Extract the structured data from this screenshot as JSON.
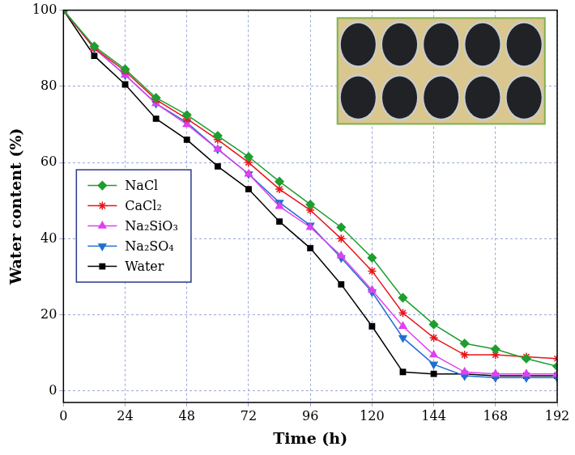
{
  "chart_data": {
    "type": "line",
    "x_label": "Time (h)",
    "y_label": "Water content (%)",
    "x": [
      0,
      12,
      24,
      36,
      48,
      60,
      72,
      84,
      96,
      108,
      120,
      132,
      144,
      156,
      168,
      180,
      192
    ],
    "series": [
      {
        "name": "NaCl",
        "color": "#1e9e2e",
        "marker": "diamond",
        "values": [
          100,
          90.5,
          84.5,
          77,
          72.5,
          67,
          61.5,
          55,
          49,
          43,
          35,
          24.5,
          17.5,
          12.5,
          11,
          8.5,
          6.5
        ]
      },
      {
        "name": "CaCl₂",
        "color": "#e8141b",
        "marker": "star",
        "values": [
          100,
          90,
          84,
          76.5,
          71.5,
          66,
          60,
          53,
          47.5,
          40,
          31.5,
          20.5,
          14,
          9.5,
          9.5,
          9,
          8.5
        ]
      },
      {
        "name": "Na₂SiO₃",
        "color": "#e040f0",
        "marker": "triangle",
        "values": [
          100,
          90,
          83,
          75.5,
          70,
          63.5,
          57,
          48.5,
          43,
          35.5,
          26.5,
          17,
          9.5,
          5,
          4.5,
          4.5,
          4.5
        ]
      },
      {
        "name": "Na₂SO₄",
        "color": "#1f6fd0",
        "marker": "triangle_down",
        "values": [
          100,
          90,
          83,
          75.5,
          70.5,
          63.5,
          57,
          49.5,
          43.5,
          35,
          26,
          14,
          7,
          4,
          3.5,
          3.5,
          3.5
        ]
      },
      {
        "name": "Water",
        "color": "#000000",
        "marker": "square",
        "values": [
          100,
          88,
          80.5,
          71.5,
          66,
          59,
          53,
          44.5,
          37.5,
          28,
          17,
          5,
          4.5,
          4.5,
          4,
          4,
          4
        ]
      }
    ],
    "xlim": [
      0,
      192
    ],
    "xticks": [
      0,
      24,
      48,
      72,
      96,
      120,
      144,
      168,
      192
    ],
    "ylim": [
      -3,
      100
    ],
    "yticks": [
      0,
      20,
      40,
      60,
      80,
      100
    ],
    "grid": true,
    "legend": "left"
  }
}
